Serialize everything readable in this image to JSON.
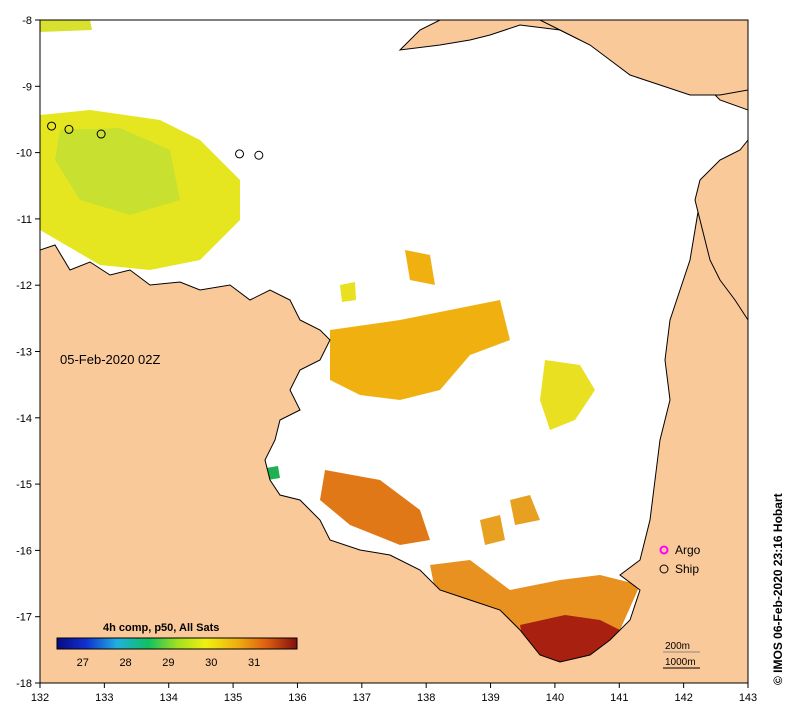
{
  "map": {
    "timestamp": "05-Feb-2020 02Z",
    "credit": "© IMOS 06-Feb-2020 23:16 Hobart",
    "lon_ticks": [
      "132",
      "133",
      "134",
      "135",
      "136",
      "137",
      "138",
      "139",
      "140",
      "141",
      "142",
      "143"
    ],
    "lat_ticks": [
      "-8",
      "-9",
      "-10",
      "-11",
      "-12",
      "-13",
      "-14",
      "-15",
      "-16",
      "-17",
      "-18"
    ],
    "lon_range": [
      132,
      143
    ],
    "lat_range": [
      -8,
      -18
    ],
    "legend": {
      "argo_label": "Argo",
      "ship_label": "Ship",
      "contour_200": "200m",
      "contour_1000": "1000m"
    },
    "colorbar": {
      "title": "4h comp, p50, All Sats",
      "ticks": [
        "27",
        "28",
        "29",
        "30",
        "31"
      ],
      "range": [
        26.4,
        32
      ]
    },
    "colors": {
      "land": "#fac99a",
      "ocean_missing": "#ffffff",
      "ship_marker": "#000000",
      "argo_marker": "#ff00ff"
    },
    "ship_positions": [
      [
        132.18,
        -9.6
      ],
      [
        132.45,
        -9.65
      ],
      [
        132.95,
        -9.72
      ],
      [
        135.1,
        -10.02
      ],
      [
        135.4,
        -10.04
      ]
    ]
  }
}
